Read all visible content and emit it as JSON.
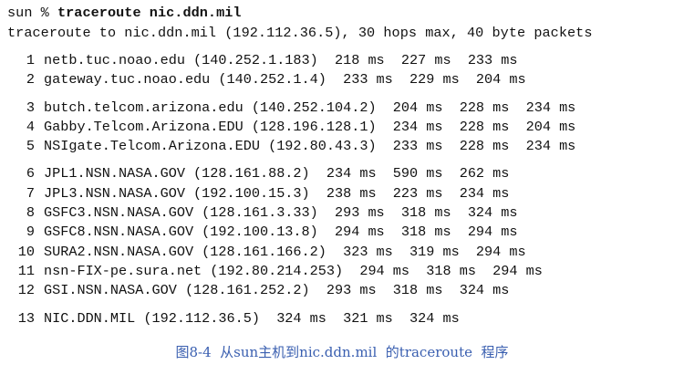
{
  "prompt": "sun % ",
  "command": "traceroute nic.ddn.mil",
  "header": "traceroute to nic.ddn.mil (192.112.36.5), 30 hops max, 40 byte packets",
  "hops": [
    {
      "num": "1",
      "text": "netb.tuc.noao.edu (140.252.1.183)  218 ms  227 ms  233 ms"
    },
    {
      "num": "2",
      "text": "gateway.tuc.noao.edu (140.252.1.4)  233 ms  229 ms  204 ms"
    },
    {
      "num": "3",
      "text": "butch.telcom.arizona.edu (140.252.104.2)  204 ms  228 ms  234 ms"
    },
    {
      "num": "4",
      "text": "Gabby.Telcom.Arizona.EDU (128.196.128.1)  234 ms  228 ms  204 ms"
    },
    {
      "num": "5",
      "text": "NSIgate.Telcom.Arizona.EDU (192.80.43.3)  233 ms  228 ms  234 ms"
    },
    {
      "num": "6",
      "text": "JPL1.NSN.NASA.GOV (128.161.88.2)  234 ms  590 ms  262 ms"
    },
    {
      "num": "7",
      "text": "JPL3.NSN.NASA.GOV (192.100.15.3)  238 ms  223 ms  234 ms"
    },
    {
      "num": "8",
      "text": "GSFC3.NSN.NASA.GOV (128.161.3.33)  293 ms  318 ms  324 ms"
    },
    {
      "num": "9",
      "text": "GSFC8.NSN.NASA.GOV (192.100.13.8)  294 ms  318 ms  294 ms"
    },
    {
      "num": "10",
      "text": "SURA2.NSN.NASA.GOV (128.161.166.2)  323 ms  319 ms  294 ms"
    },
    {
      "num": "11",
      "text": "nsn-FIX-pe.sura.net (192.80.214.253)  294 ms  318 ms  294 ms"
    },
    {
      "num": "12",
      "text": "GSI.NSN.NASA.GOV (128.161.252.2)  293 ms  318 ms  324 ms"
    },
    {
      "num": "13",
      "text": "NIC.DDN.MIL (192.112.36.5)  324 ms  321 ms  324 ms"
    }
  ],
  "caption": "图8-4  从sun主机到nic.ddn.mil  的traceroute  程序"
}
